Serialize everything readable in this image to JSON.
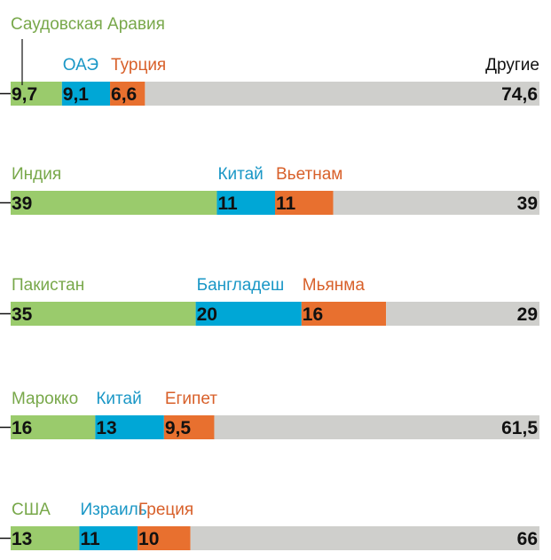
{
  "chart_data": [
    {
      "type": "stacked-bar",
      "series": [
        {
          "name": "Саудовская Аравия",
          "color": "#9acb6c",
          "values": [
            9.7
          ],
          "value_labels": [
            "9,7"
          ]
        },
        {
          "name": "ОАЭ",
          "color": "#00a7d6",
          "values": [
            9.1
          ],
          "value_labels": [
            "9,1"
          ]
        },
        {
          "name": "Турция",
          "color": "#e8702f",
          "values": [
            6.6
          ],
          "value_labels": [
            "6,6"
          ]
        },
        {
          "name": "Другие",
          "color": "#cfcfcc",
          "values": [
            74.6
          ],
          "value_labels": [
            "74,6"
          ]
        }
      ]
    },
    {
      "type": "stacked-bar",
      "series": [
        {
          "name": "Индия",
          "color": "#9acb6c",
          "values": [
            39
          ]
        },
        {
          "name": "Китай",
          "color": "#00a7d6",
          "values": [
            11
          ]
        },
        {
          "name": "Вьетнам",
          "color": "#e8702f",
          "values": [
            11
          ]
        },
        {
          "color": "#cfcfcc",
          "values": [
            39
          ]
        }
      ]
    },
    {
      "type": "stacked-bar",
      "series": [
        {
          "name": "Пакистан",
          "color": "#9acb6c",
          "values": [
            35
          ]
        },
        {
          "name": "Бангладеш",
          "color": "#00a7d6",
          "values": [
            20
          ]
        },
        {
          "name": "Мьянма",
          "color": "#e8702f",
          "values": [
            16
          ]
        },
        {
          "color": "#cfcfcc",
          "values": [
            29
          ]
        }
      ]
    },
    {
      "type": "stacked-bar",
      "series": [
        {
          "name": "Марокко",
          "color": "#9acb6c",
          "values": [
            16
          ]
        },
        {
          "name": "Китай",
          "color": "#00a7d6",
          "values": [
            13
          ]
        },
        {
          "name": "Египет",
          "color": "#e8702f",
          "values": [
            9.5
          ],
          "value_labels": [
            "9,5"
          ]
        },
        {
          "color": "#cfcfcc",
          "values": [
            61.5
          ],
          "value_labels": [
            "61,5"
          ]
        }
      ]
    },
    {
      "type": "stacked-bar",
      "series": [
        {
          "name": "США",
          "color": "#9acb6c",
          "values": [
            13
          ]
        },
        {
          "name": "Израиль",
          "color": "#00a7d6",
          "values": [
            11
          ]
        },
        {
          "name": "Греция",
          "color": "#e8702f",
          "values": [
            10
          ]
        },
        {
          "color": "#cfcfcc",
          "values": [
            66
          ]
        }
      ]
    }
  ]
}
